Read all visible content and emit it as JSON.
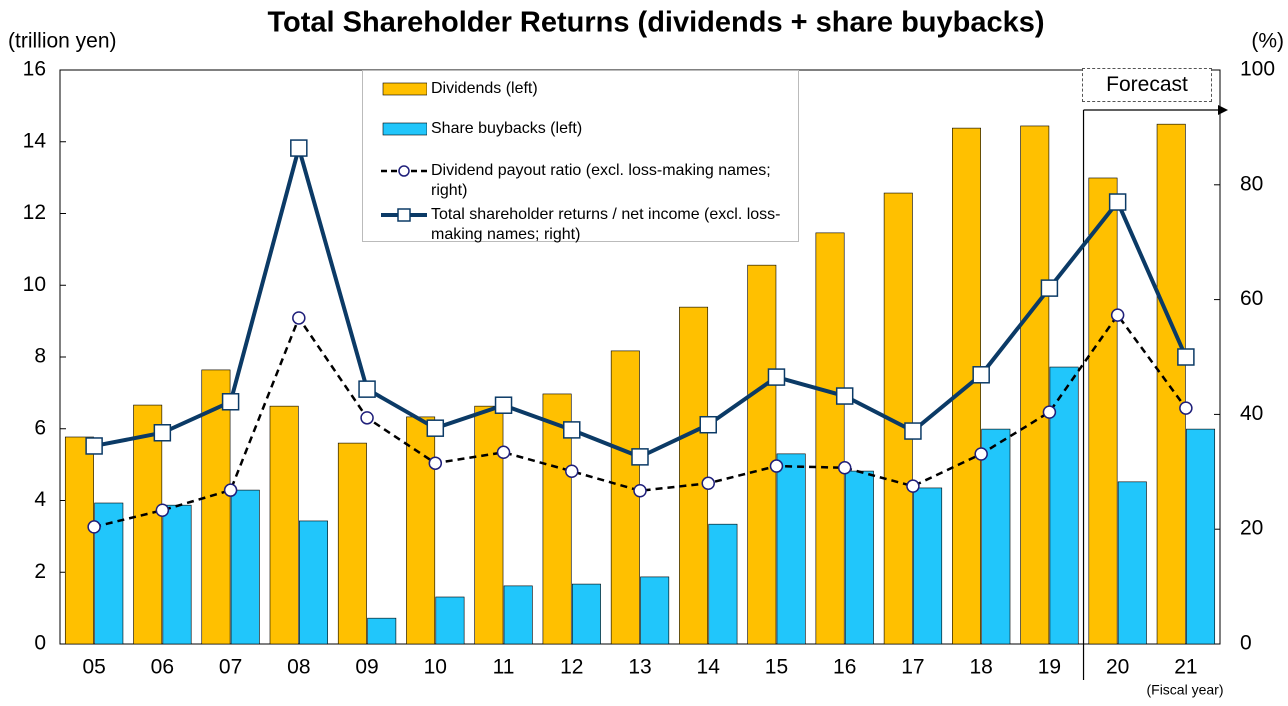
{
  "chart_data": {
    "type": "bar",
    "title": "Total Shareholder Returns (dividends + share buybacks)",
    "y_label": "(trillion yen)",
    "y2_label": "(%)",
    "x_label": "(Fiscal year)",
    "forecast_label": "Forecast",
    "categories": [
      "05",
      "06",
      "07",
      "08",
      "09",
      "10",
      "11",
      "12",
      "13",
      "14",
      "15",
      "16",
      "17",
      "18",
      "19",
      "20",
      "21"
    ],
    "series": [
      {
        "name": "Dividends (left)",
        "type": "bar",
        "color": "#ffc000",
        "values": [
          5.77,
          6.66,
          7.64,
          6.63,
          5.6,
          6.33,
          6.63,
          6.97,
          8.17,
          9.39,
          10.56,
          11.46,
          12.57,
          14.38,
          14.44,
          12.99,
          14.49
        ]
      },
      {
        "name": "Share buybacks (left)",
        "type": "bar",
        "color": "#21c6fb",
        "values": [
          3.93,
          3.87,
          4.29,
          3.43,
          0.72,
          1.31,
          1.62,
          1.67,
          1.87,
          3.34,
          5.3,
          4.82,
          4.35,
          5.99,
          7.72,
          4.52,
          5.99
        ]
      },
      {
        "name": "Dividend payout ratio (excl. loss-making names; right)",
        "type": "line",
        "axis": "y2",
        "color": "#000000",
        "dashed": true,
        "marker": "circle",
        "values": [
          20.4,
          23.3,
          26.8,
          56.8,
          39.4,
          31.5,
          33.4,
          30.1,
          26.7,
          28.0,
          31.0,
          30.7,
          27.5,
          33.1,
          40.4,
          57.3,
          41.1
        ]
      },
      {
        "name": "Total shareholder returns / net income (excl. loss-making names; right)",
        "type": "line",
        "axis": "y2",
        "color": "#0b3a66",
        "dashed": false,
        "marker": "square",
        "values": [
          34.5,
          36.8,
          42.2,
          86.4,
          44.4,
          37.6,
          41.6,
          37.3,
          32.6,
          38.2,
          46.5,
          43.2,
          37.1,
          46.9,
          62.0,
          77.0,
          50.0
        ]
      }
    ],
    "ylim": [
      0,
      16
    ],
    "yticks": [
      0,
      2,
      4,
      6,
      8,
      10,
      12,
      14,
      16
    ],
    "y2lim": [
      0,
      100
    ],
    "y2ticks": [
      0,
      20,
      40,
      60,
      80,
      100
    ],
    "grid": false
  }
}
